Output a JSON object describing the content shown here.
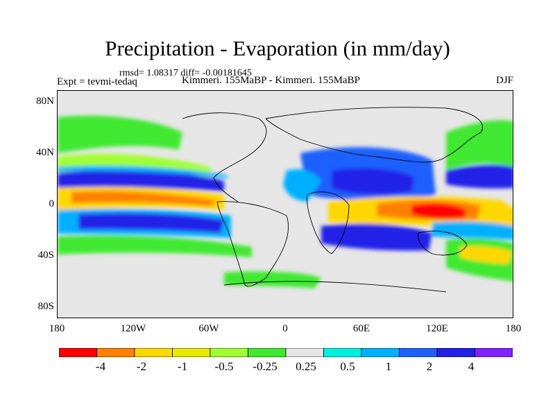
{
  "header": {
    "title": "Precipitation - Evaporation (in mm/day)",
    "stats": "rmsd= 1.08317 diff= -0.00181645",
    "expt": "Expt = tevmi-tedaq",
    "experiments": "Kimmeri. 155MaBP - Kimmeri. 155MaBP",
    "season": "DJF"
  },
  "axes": {
    "lat_ticks": [
      "80N",
      "40N",
      "0",
      "40S",
      "80S"
    ],
    "lat_values": [
      80,
      40,
      0,
      -40,
      -80
    ],
    "lon_ticks": [
      "180",
      "120W",
      "60W",
      "0",
      "60E",
      "120E",
      "180"
    ],
    "lon_values": [
      -180,
      -120,
      -60,
      0,
      60,
      120,
      180
    ]
  },
  "colorbar": {
    "colors": [
      "#ff0000",
      "#ff8000",
      "#ffd700",
      "#e8e800",
      "#a0ff30",
      "#40e830",
      "#e6e6e6",
      "#00f0e0",
      "#00b0ff",
      "#1e60ff",
      "#2020e8",
      "#8020ff"
    ],
    "labels": [
      "-4",
      "-2",
      "-1",
      "-0.5",
      "-0.25",
      "0.25",
      "0.5",
      "1",
      "2",
      "4"
    ],
    "levels": [
      -4,
      -2,
      -1,
      -0.5,
      -0.25,
      0.25,
      0.5,
      1,
      2,
      4
    ]
  },
  "map": {
    "background_color": "#e6e6e6"
  }
}
